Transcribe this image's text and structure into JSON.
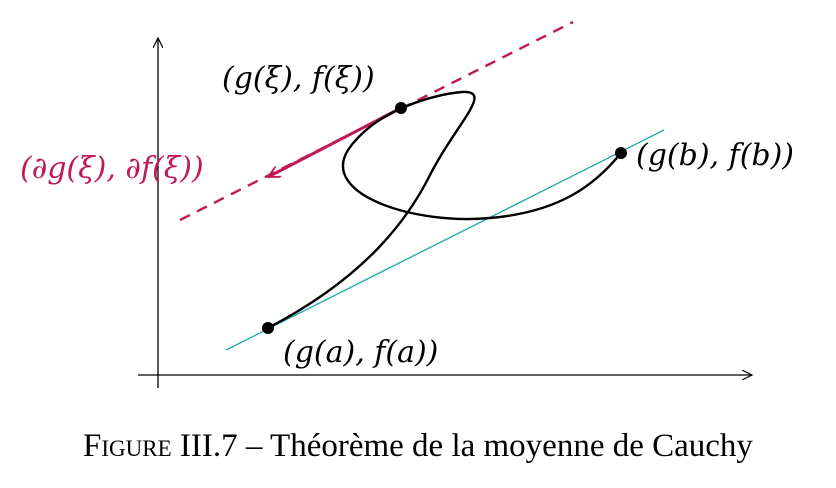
{
  "figure": {
    "points": {
      "a": "(g(a), f(a))",
      "b": "(g(b), f(b))",
      "xi": "(g(ξ), f(ξ))",
      "gradient": "(∂g(ξ), ∂f(ξ))"
    },
    "colors": {
      "curve": "#000000",
      "axes": "#000000",
      "secant": "#1aa7b0",
      "tangent": "#c0185a"
    }
  },
  "caption": {
    "label": "Figure III.7",
    "separator": " – ",
    "text": "Théorème de la moyenne de Cauchy"
  }
}
